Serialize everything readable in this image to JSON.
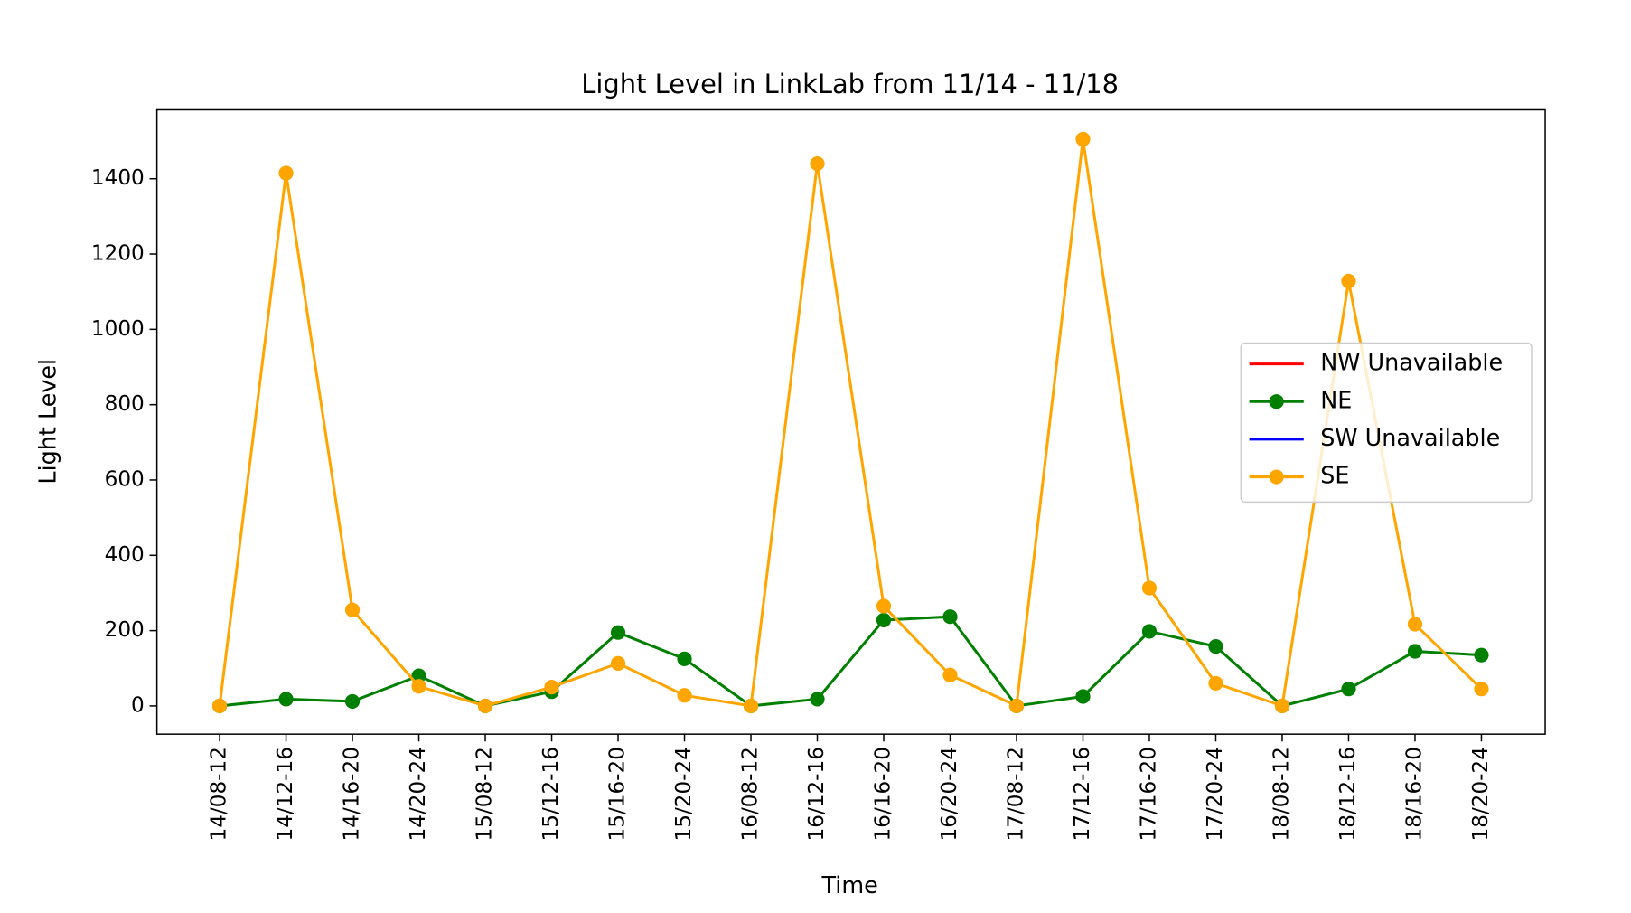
{
  "chart_data": {
    "type": "line",
    "title": "Light Level in LinkLab from 11/14 - 11/18",
    "x_label": "Time",
    "y_label": "Light Level",
    "categories": [
      "14/08-12",
      "14/12-16",
      "14/16-20",
      "14/20-24",
      "15/08-12",
      "15/12-16",
      "15/16-20",
      "15/20-24",
      "16/08-12",
      "16/12-16",
      "16/16-20",
      "16/20-24",
      "17/08-12",
      "17/12-16",
      "17/16-20",
      "17/20-24",
      "18/08-12",
      "18/12-16",
      "18/16-20",
      "18/20-24"
    ],
    "series": [
      {
        "name": "NW Unavailable",
        "color": "#ff0000",
        "marker": false,
        "values": [
          null,
          null,
          null,
          null,
          null,
          null,
          null,
          null,
          null,
          null,
          null,
          null,
          null,
          null,
          null,
          null,
          null,
          null,
          null,
          null
        ]
      },
      {
        "name": "NE",
        "color": "#008000",
        "marker": true,
        "values": [
          0,
          18,
          12,
          80,
          0,
          38,
          195,
          125,
          0,
          18,
          228,
          237,
          0,
          25,
          198,
          158,
          0,
          45,
          145,
          135
        ]
      },
      {
        "name": "SW Unavailable",
        "color": "#0000ff",
        "marker": false,
        "values": [
          null,
          null,
          null,
          null,
          null,
          null,
          null,
          null,
          null,
          null,
          null,
          null,
          null,
          null,
          null,
          null,
          null,
          null,
          null,
          null
        ]
      },
      {
        "name": "SE",
        "color": "#ffa500",
        "marker": true,
        "values": [
          0,
          1415,
          255,
          52,
          0,
          50,
          113,
          28,
          0,
          1440,
          265,
          82,
          0,
          1505,
          313,
          60,
          0,
          1128,
          217,
          45
        ]
      }
    ],
    "ylim": [
      -75,
      1583
    ],
    "yticks": [
      0,
      200,
      400,
      600,
      800,
      1000,
      1200,
      1400
    ],
    "legend": "right"
  }
}
